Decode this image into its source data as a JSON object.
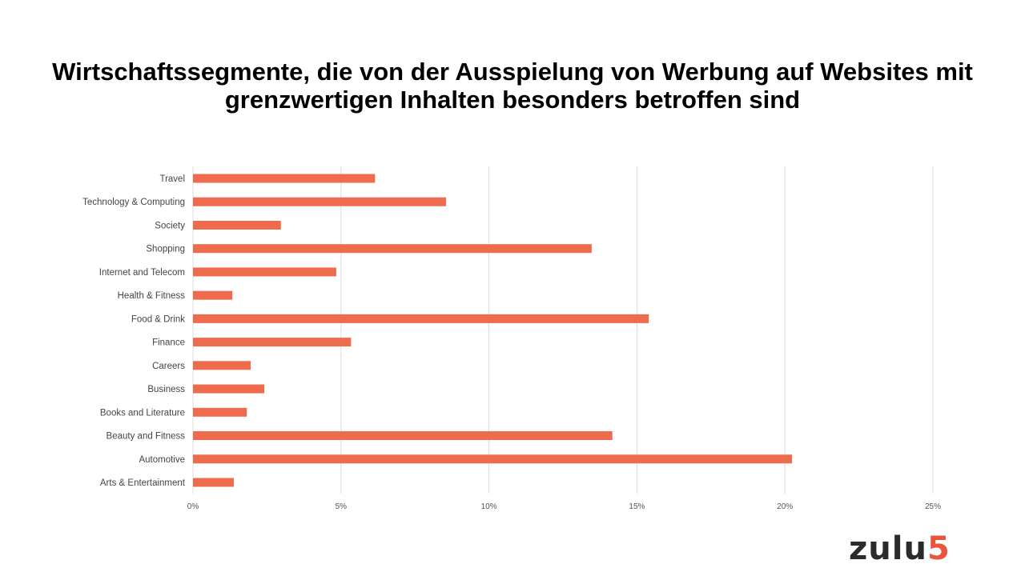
{
  "chart_data": {
    "type": "bar",
    "orientation": "horizontal",
    "title": "Wirtschaftssegmente, die von der Ausspielung von Werbung auf Websites mit grenzwertigen Inhalten besonders betroffen sind",
    "categories": [
      "Travel",
      "Technology & Computing",
      "Society",
      "Shopping",
      "Internet and Telecom",
      "Health & Fitness",
      "Food & Drink",
      "Finance",
      "Careers",
      "Business",
      "Books and Literature",
      "Beauty and Fitness",
      "Automotive",
      "Arts & Entertainment"
    ],
    "values": [
      6.15,
      8.55,
      2.97,
      13.47,
      4.84,
      1.33,
      15.4,
      5.34,
      1.95,
      2.41,
      1.82,
      14.17,
      20.24,
      1.38
    ],
    "xlim": [
      0,
      25
    ],
    "xticks": [
      "0%",
      "5%",
      "10%",
      "15%",
      "20%",
      "25%"
    ],
    "xlabel": "",
    "ylabel": "",
    "grid": true,
    "bar_color": "#ee6c4d",
    "grid_color": "#dddddd"
  },
  "logo": {
    "text": "zulu",
    "accent": "5"
  }
}
